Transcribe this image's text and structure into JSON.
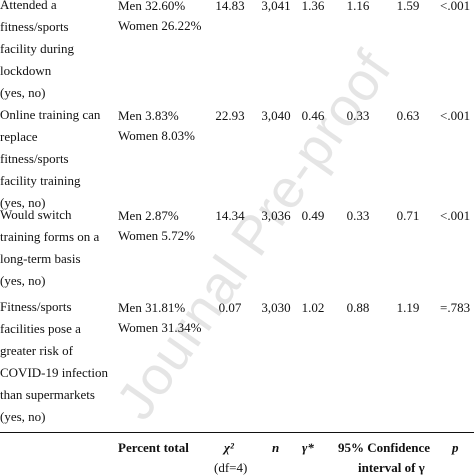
{
  "watermark": "Journal Pre-proof",
  "rows": [
    {
      "desc": [
        "Attended a",
        "fitness/sports",
        "facility during",
        "lockdown",
        "(yes, no)"
      ],
      "pct": [
        "Men 32.60%",
        "Women 26.22%"
      ],
      "chi2": "14.83",
      "n": "3,041",
      "gamma": "1.36",
      "ci_low": "1.16",
      "ci_high": "1.59",
      "p": "<.001"
    },
    {
      "desc": [
        "Online training can",
        "replace",
        "fitness/sports",
        "facility training",
        "(yes, no)"
      ],
      "pct": [
        "Men 3.83%",
        "Women 8.03%"
      ],
      "chi2": "22.93",
      "n": "3,040",
      "gamma": "0.46",
      "ci_low": "0.33",
      "ci_high": "0.63",
      "p": "<.001"
    },
    {
      "desc": [
        "Would switch",
        "training forms on a",
        "long-term basis",
        "(yes, no)"
      ],
      "pct": [
        "Men 2.87%",
        "Women 5.72%"
      ],
      "chi2": "14.34",
      "n": "3,036",
      "gamma": "0.49",
      "ci_low": "0.33",
      "ci_high": "0.71",
      "p": "<.001"
    },
    {
      "desc": [
        "Fitness/sports",
        "facilities pose a",
        "greater risk of",
        "COVID-19 infection",
        "than supermarkets",
        "(yes, no)"
      ],
      "pct": [
        "Men 31.81%",
        "Women 31.34%"
      ],
      "chi2": "0.07",
      "n": "3,030",
      "gamma": "1.02",
      "ci_low": "0.88",
      "ci_high": "1.19",
      "p": "=.783"
    }
  ],
  "header": {
    "percent_total": "Percent total",
    "chi2": "χ²",
    "chi2_sub": "(df=4)",
    "n": "n",
    "gamma": "γ*",
    "ci": "95% Confidence",
    "ci_sub": "interval of γ",
    "p": "p"
  }
}
